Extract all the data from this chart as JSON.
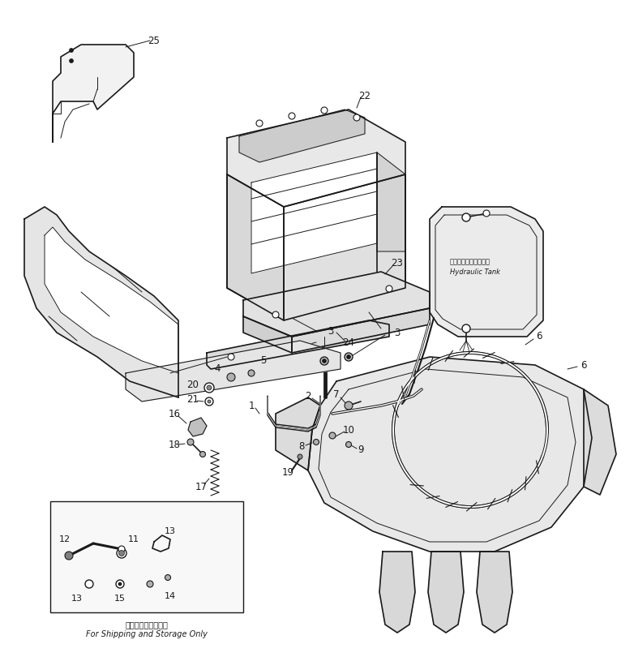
{
  "background_color": "#ffffff",
  "fig_width": 7.82,
  "fig_height": 8.1,
  "dpi": 100,
  "lc": "#1a1a1a",
  "lw_main": 1.2,
  "lw_thin": 0.7,
  "label_fontsize": 8.5,
  "bottom_text_jp": "輸送及び保管用のみ",
  "bottom_text_en": "For Shipping and Storage Only",
  "hydraulic_tank_jp": "ハイドロリックタンク",
  "hydraulic_tank_en": "Hydraulic Tank"
}
